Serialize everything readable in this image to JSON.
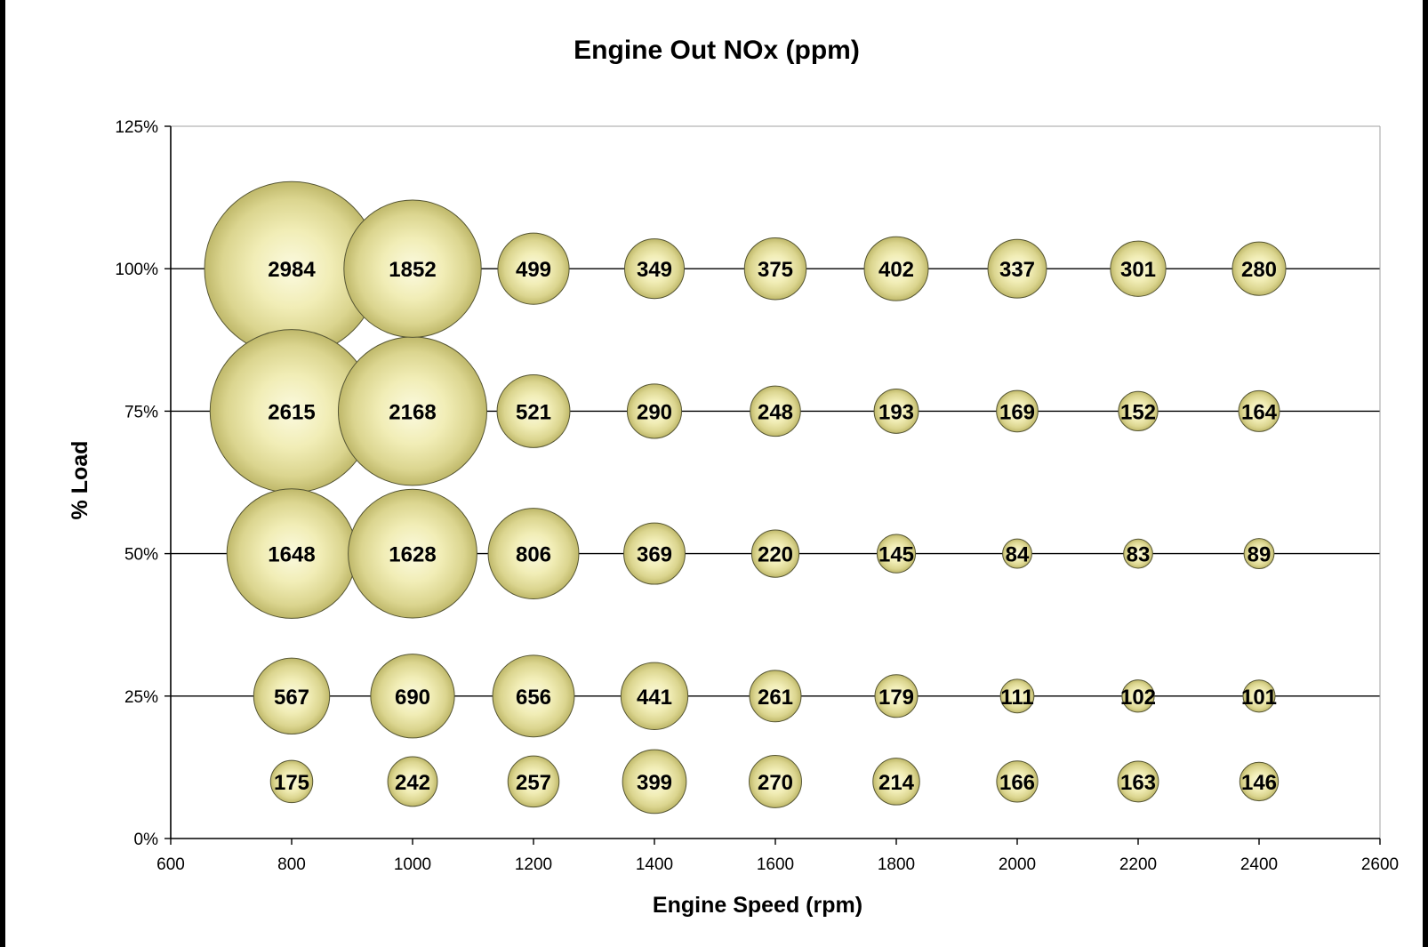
{
  "chart_data": {
    "type": "bubble",
    "title": "Engine Out NOx (ppm)",
    "xlabel": "Engine Speed (rpm)",
    "ylabel": "% Load",
    "xlim": [
      600,
      2600
    ],
    "ylim": [
      0,
      125
    ],
    "x_ticks": [
      600,
      800,
      1000,
      1200,
      1400,
      1600,
      1800,
      2000,
      2200,
      2400,
      2600
    ],
    "y_ticks": [
      0,
      25,
      50,
      75,
      100,
      125
    ],
    "y_tick_labels": [
      "0%",
      "25%",
      "50%",
      "75%",
      "100%",
      "125%"
    ],
    "grid": "horizontal",
    "legend": "none",
    "bubble_color": "#f2efb8",
    "bubble_edge_color": "#b8b46a",
    "points": [
      {
        "x": 800,
        "y": 100,
        "value": 2984
      },
      {
        "x": 1000,
        "y": 100,
        "value": 1852
      },
      {
        "x": 1200,
        "y": 100,
        "value": 499
      },
      {
        "x": 1400,
        "y": 100,
        "value": 349
      },
      {
        "x": 1600,
        "y": 100,
        "value": 375
      },
      {
        "x": 1800,
        "y": 100,
        "value": 402
      },
      {
        "x": 2000,
        "y": 100,
        "value": 337
      },
      {
        "x": 2200,
        "y": 100,
        "value": 301
      },
      {
        "x": 2400,
        "y": 100,
        "value": 280
      },
      {
        "x": 800,
        "y": 75,
        "value": 2615
      },
      {
        "x": 1000,
        "y": 75,
        "value": 2168
      },
      {
        "x": 1200,
        "y": 75,
        "value": 521
      },
      {
        "x": 1400,
        "y": 75,
        "value": 290
      },
      {
        "x": 1600,
        "y": 75,
        "value": 248
      },
      {
        "x": 1800,
        "y": 75,
        "value": 193
      },
      {
        "x": 2000,
        "y": 75,
        "value": 169
      },
      {
        "x": 2200,
        "y": 75,
        "value": 152
      },
      {
        "x": 2400,
        "y": 75,
        "value": 164
      },
      {
        "x": 800,
        "y": 50,
        "value": 1648
      },
      {
        "x": 1000,
        "y": 50,
        "value": 1628
      },
      {
        "x": 1200,
        "y": 50,
        "value": 806
      },
      {
        "x": 1400,
        "y": 50,
        "value": 369
      },
      {
        "x": 1600,
        "y": 50,
        "value": 220
      },
      {
        "x": 1800,
        "y": 50,
        "value": 145
      },
      {
        "x": 2000,
        "y": 50,
        "value": 84
      },
      {
        "x": 2200,
        "y": 50,
        "value": 83
      },
      {
        "x": 2400,
        "y": 50,
        "value": 89
      },
      {
        "x": 800,
        "y": 25,
        "value": 567
      },
      {
        "x": 1000,
        "y": 25,
        "value": 690
      },
      {
        "x": 1200,
        "y": 25,
        "value": 656
      },
      {
        "x": 1400,
        "y": 25,
        "value": 441
      },
      {
        "x": 1600,
        "y": 25,
        "value": 261
      },
      {
        "x": 1800,
        "y": 25,
        "value": 179
      },
      {
        "x": 2000,
        "y": 25,
        "value": 111
      },
      {
        "x": 2200,
        "y": 25,
        "value": 102
      },
      {
        "x": 2400,
        "y": 25,
        "value": 101
      },
      {
        "x": 800,
        "y": 10,
        "value": 175
      },
      {
        "x": 1000,
        "y": 10,
        "value": 242
      },
      {
        "x": 1200,
        "y": 10,
        "value": 257
      },
      {
        "x": 1400,
        "y": 10,
        "value": 399
      },
      {
        "x": 1600,
        "y": 10,
        "value": 270
      },
      {
        "x": 1800,
        "y": 10,
        "value": 214
      },
      {
        "x": 2000,
        "y": 10,
        "value": 166
      },
      {
        "x": 2200,
        "y": 10,
        "value": 163
      },
      {
        "x": 2400,
        "y": 10,
        "value": 146
      }
    ]
  }
}
